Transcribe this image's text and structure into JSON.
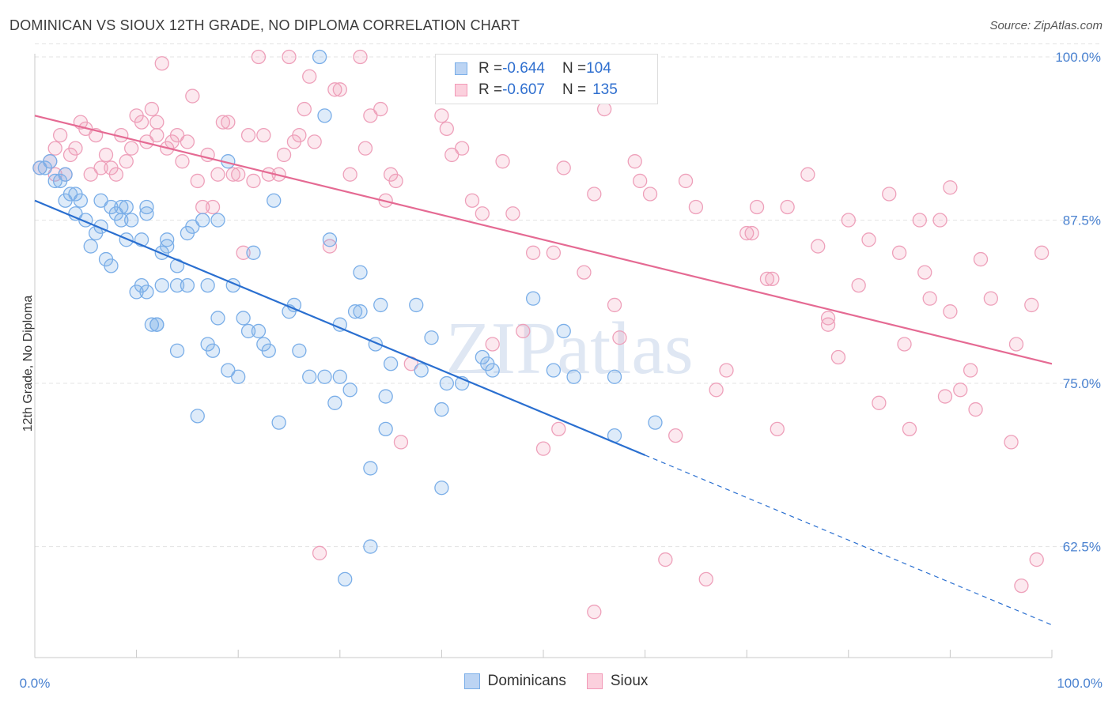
{
  "title": "DOMINICAN VS SIOUX 12TH GRADE, NO DIPLOMA CORRELATION CHART",
  "source": "Source: ZipAtlas.com",
  "watermark": "ZIPatlas",
  "legend_top": {
    "rows": [
      {
        "r_label": "R = ",
        "r_value": "-0.644",
        "n_label": "N = ",
        "n_value": "104"
      },
      {
        "r_label": "R = ",
        "r_value": "-0.607",
        "n_label": "N = ",
        "n_value": "135"
      }
    ]
  },
  "chart_data": {
    "type": "scatter",
    "title": "DOMINICAN VS SIOUX 12TH GRADE, NO DIPLOMA CORRELATION CHART",
    "xlabel": "",
    "ylabel": "12th Grade, No Diploma",
    "xlim": [
      0,
      100
    ],
    "ylim": [
      54,
      100
    ],
    "x_tick_labels": [
      "0.0%",
      "100.0%"
    ],
    "y_ticks": [
      62.5,
      75.0,
      87.5,
      100.0
    ],
    "y_tick_labels": [
      "62.5%",
      "75.0%",
      "87.5%",
      "100.0%"
    ],
    "grid": "horizontal dashed",
    "legend": "top-center and bottom",
    "colors": {
      "Dominicans": "#7aaee8",
      "Sioux": "#f29ab8",
      "Dominicans_line": "#2a6fd0",
      "Sioux_line": "#e56a93",
      "tick_text": "#4a82d0"
    },
    "series": [
      {
        "name": "Dominicans",
        "R": -0.644,
        "N": 104,
        "trend": {
          "x0": 0,
          "y0": 89.0,
          "x1": 60,
          "y1": 69.5,
          "dash_to_x": 100,
          "dash_to_y": 56.5
        },
        "points": [
          [
            0.5,
            91.5
          ],
          [
            1,
            91.5
          ],
          [
            1.5,
            92
          ],
          [
            2,
            90.5
          ],
          [
            2.5,
            90.5
          ],
          [
            3,
            91
          ],
          [
            3,
            89
          ],
          [
            3.5,
            89.5
          ],
          [
            4,
            89.5
          ],
          [
            4,
            88
          ],
          [
            4.5,
            89
          ],
          [
            5,
            87.5
          ],
          [
            5.5,
            85.5
          ],
          [
            6,
            86.5
          ],
          [
            6.5,
            87
          ],
          [
            6.5,
            89
          ],
          [
            7,
            84.5
          ],
          [
            7.5,
            88.5
          ],
          [
            7.5,
            84
          ],
          [
            8,
            88
          ],
          [
            8.5,
            88.5
          ],
          [
            8.5,
            87.5
          ],
          [
            9,
            88.5
          ],
          [
            9,
            86
          ],
          [
            9.5,
            87.5
          ],
          [
            10,
            82
          ],
          [
            10.5,
            86
          ],
          [
            10.5,
            82.5
          ],
          [
            11,
            88.5
          ],
          [
            11,
            88
          ],
          [
            11,
            82
          ],
          [
            11.5,
            79.5
          ],
          [
            12,
            79.5
          ],
          [
            12,
            79.5
          ],
          [
            12.5,
            85
          ],
          [
            12.5,
            82.5
          ],
          [
            13,
            85.5
          ],
          [
            13,
            86
          ],
          [
            14,
            82.5
          ],
          [
            14,
            84
          ],
          [
            14,
            77.5
          ],
          [
            15,
            86.5
          ],
          [
            15,
            82.5
          ],
          [
            15.5,
            87
          ],
          [
            16,
            72.5
          ],
          [
            16.5,
            87.5
          ],
          [
            17,
            78
          ],
          [
            17,
            82.5
          ],
          [
            17.5,
            77.5
          ],
          [
            18,
            80
          ],
          [
            18,
            87.5
          ],
          [
            19,
            92
          ],
          [
            19,
            76
          ],
          [
            19.5,
            82.5
          ],
          [
            20,
            75.5
          ],
          [
            20.5,
            80
          ],
          [
            21,
            79
          ],
          [
            21.5,
            85
          ],
          [
            22,
            79
          ],
          [
            22.5,
            78
          ],
          [
            23,
            77.5
          ],
          [
            23.5,
            89
          ],
          [
            24,
            72
          ],
          [
            25,
            80.5
          ],
          [
            25.5,
            81
          ],
          [
            26,
            77.5
          ],
          [
            27,
            75.5
          ],
          [
            28,
            100
          ],
          [
            28.5,
            95.5
          ],
          [
            28.5,
            75.5
          ],
          [
            29,
            86
          ],
          [
            29.5,
            73.5
          ],
          [
            30,
            79.5
          ],
          [
            30,
            75.5
          ],
          [
            30.5,
            60
          ],
          [
            31,
            74.5
          ],
          [
            31.5,
            80.5
          ],
          [
            32,
            80.5
          ],
          [
            32,
            83.5
          ],
          [
            33,
            62.5
          ],
          [
            33,
            68.5
          ],
          [
            33.5,
            78
          ],
          [
            34,
            81
          ],
          [
            34.5,
            74
          ],
          [
            34.5,
            71.5
          ],
          [
            35,
            76.5
          ],
          [
            37.5,
            81
          ],
          [
            38,
            76
          ],
          [
            39,
            78.5
          ],
          [
            40,
            73
          ],
          [
            40,
            67
          ],
          [
            40.5,
            75
          ],
          [
            42,
            75
          ],
          [
            44,
            77
          ],
          [
            44.5,
            76.5
          ],
          [
            45,
            76
          ],
          [
            49,
            81.5
          ],
          [
            51,
            76
          ],
          [
            52,
            79
          ],
          [
            53,
            75.5
          ],
          [
            57,
            71
          ],
          [
            57,
            75.5
          ],
          [
            61,
            72
          ]
        ],
        "note": "approximate readings"
      },
      {
        "name": "Sioux",
        "R": -0.607,
        "N": 135,
        "trend": {
          "x0": 0,
          "y0": 95.5,
          "x1": 100,
          "y1": 76.5
        },
        "points": [
          [
            0.5,
            91.5
          ],
          [
            1.5,
            92
          ],
          [
            2,
            93
          ],
          [
            2,
            91
          ],
          [
            2.5,
            94
          ],
          [
            3,
            91
          ],
          [
            3.5,
            92.5
          ],
          [
            4,
            93
          ],
          [
            4.5,
            95
          ],
          [
            5,
            94.5
          ],
          [
            5.5,
            91
          ],
          [
            6,
            94
          ],
          [
            6.5,
            91.5
          ],
          [
            7,
            92.5
          ],
          [
            7.5,
            91.5
          ],
          [
            8,
            91
          ],
          [
            8.5,
            94
          ],
          [
            9,
            92
          ],
          [
            9.5,
            93
          ],
          [
            10,
            95.5
          ],
          [
            10.5,
            95
          ],
          [
            11,
            93.5
          ],
          [
            11.5,
            96
          ],
          [
            12,
            95
          ],
          [
            12,
            94
          ],
          [
            12.5,
            99.5
          ],
          [
            13,
            93
          ],
          [
            13.5,
            93.5
          ],
          [
            14,
            94
          ],
          [
            14.5,
            92
          ],
          [
            15,
            93.5
          ],
          [
            15.5,
            97
          ],
          [
            16,
            90.5
          ],
          [
            16.5,
            88.5
          ],
          [
            17,
            92.5
          ],
          [
            17.5,
            88.5
          ],
          [
            18,
            91
          ],
          [
            18.5,
            95
          ],
          [
            19,
            95
          ],
          [
            19.5,
            91
          ],
          [
            20,
            91
          ],
          [
            20.5,
            85
          ],
          [
            21,
            94
          ],
          [
            21.5,
            90.5
          ],
          [
            22,
            100
          ],
          [
            22.5,
            94
          ],
          [
            23,
            91
          ],
          [
            24,
            91
          ],
          [
            24.5,
            92.5
          ],
          [
            25,
            100
          ],
          [
            25.5,
            93.5
          ],
          [
            26,
            94
          ],
          [
            26.5,
            96
          ],
          [
            27,
            98.5
          ],
          [
            27.5,
            93.5
          ],
          [
            28,
            62
          ],
          [
            29,
            85.5
          ],
          [
            29.5,
            97.5
          ],
          [
            30,
            97.5
          ],
          [
            31,
            91
          ],
          [
            32,
            100
          ],
          [
            32.5,
            93
          ],
          [
            33,
            95.5
          ],
          [
            34,
            96
          ],
          [
            34.5,
            89
          ],
          [
            35,
            91
          ],
          [
            35.5,
            90.5
          ],
          [
            36,
            70.5
          ],
          [
            37,
            76.5
          ],
          [
            40,
            95.5
          ],
          [
            40.5,
            94.5
          ],
          [
            41,
            92.5
          ],
          [
            42,
            93
          ],
          [
            43,
            89
          ],
          [
            44,
            88
          ],
          [
            45,
            78
          ],
          [
            46,
            92
          ],
          [
            47,
            88
          ],
          [
            48,
            79
          ],
          [
            49,
            85
          ],
          [
            50,
            70
          ],
          [
            51,
            85
          ],
          [
            51.5,
            71.5
          ],
          [
            52,
            91.5
          ],
          [
            54,
            83.5
          ],
          [
            55,
            57.5
          ],
          [
            55,
            89.5
          ],
          [
            56,
            96
          ],
          [
            57,
            81
          ],
          [
            57.5,
            78.5
          ],
          [
            59,
            92
          ],
          [
            59.5,
            90.5
          ],
          [
            60.5,
            89.5
          ],
          [
            62,
            61.5
          ],
          [
            63,
            71
          ],
          [
            64,
            90.5
          ],
          [
            65,
            88.5
          ],
          [
            66,
            60
          ],
          [
            67,
            74.5
          ],
          [
            68,
            76
          ],
          [
            70,
            86.5
          ],
          [
            70.5,
            86.5
          ],
          [
            71,
            88.5
          ],
          [
            72,
            83
          ],
          [
            72.5,
            83
          ],
          [
            73,
            71.5
          ],
          [
            74,
            88.5
          ],
          [
            76,
            91
          ],
          [
            77,
            85.5
          ],
          [
            78,
            79.5
          ],
          [
            78,
            80
          ],
          [
            79,
            77
          ],
          [
            80,
            87.5
          ],
          [
            81,
            82.5
          ],
          [
            82,
            86
          ],
          [
            83,
            73.5
          ],
          [
            84,
            89.5
          ],
          [
            85,
            85
          ],
          [
            85.5,
            78
          ],
          [
            86,
            71.5
          ],
          [
            87,
            87.5
          ],
          [
            87.5,
            83.5
          ],
          [
            88,
            81.5
          ],
          [
            89,
            87.5
          ],
          [
            89.5,
            74
          ],
          [
            90,
            80.5
          ],
          [
            90,
            90
          ],
          [
            91,
            74.5
          ],
          [
            92,
            76
          ],
          [
            92.5,
            73
          ],
          [
            93,
            84.5
          ],
          [
            94,
            81.5
          ],
          [
            96,
            70.5
          ],
          [
            96.5,
            78
          ],
          [
            97,
            59.5
          ],
          [
            98,
            81
          ],
          [
            98.5,
            61.5
          ],
          [
            99,
            85
          ]
        ],
        "note": "approximate readings"
      }
    ]
  }
}
